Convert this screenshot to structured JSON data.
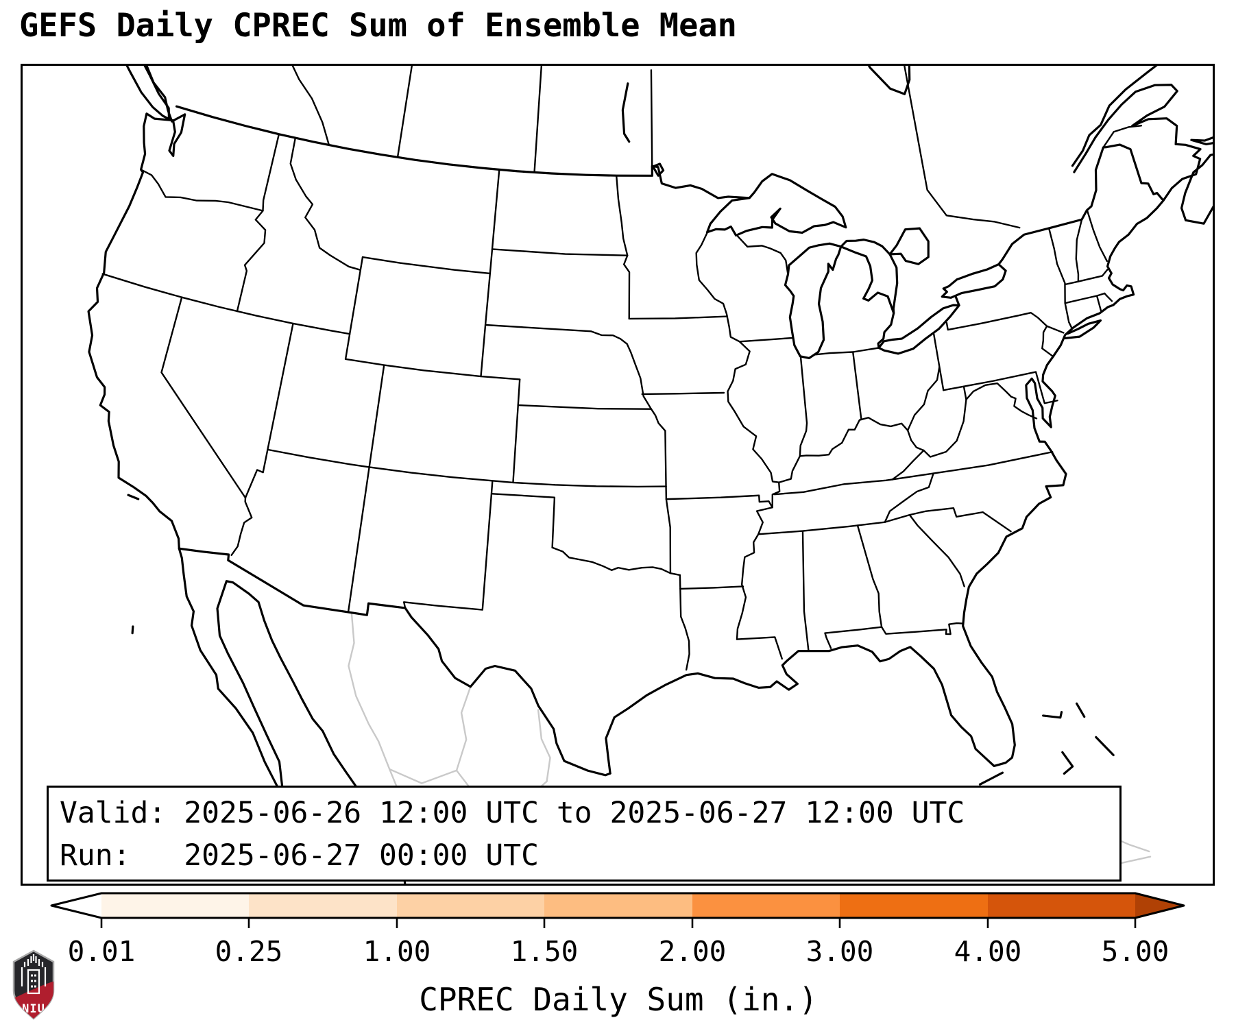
{
  "title": "GEFS Daily CPREC Sum of Ensemble Mean",
  "info_box": {
    "line1": "Valid: 2025-06-26 12:00 UTC to 2025-06-27 12:00 UTC",
    "line2": "Run:   2025-06-27 00:00 UTC"
  },
  "colorbar": {
    "axis_label": "CPREC Daily Sum (in.)",
    "tick_labels": [
      "0.01",
      "0.25",
      "1.00",
      "1.50",
      "2.00",
      "3.00",
      "4.00",
      "5.00"
    ],
    "levels": [
      0.01,
      0.25,
      1.0,
      1.5,
      2.0,
      3.0,
      4.0,
      5.0
    ],
    "under_color": "#ffffff",
    "over_color": "#b04105",
    "segment_colors": [
      "#fef4e8",
      "#fde3c8",
      "#fdd1a5",
      "#fdbd81",
      "#fb9140",
      "#ee6f13",
      "#d5550b"
    ]
  },
  "map": {
    "land_color": "#ffffff",
    "us_outline_color": "#000000",
    "state_line_color": "#000000",
    "foreign_detail_color": "#c9c9c9"
  },
  "logo": {
    "text": "NIU",
    "shield_color": "#26262a",
    "band_color": "#b01e2e"
  }
}
